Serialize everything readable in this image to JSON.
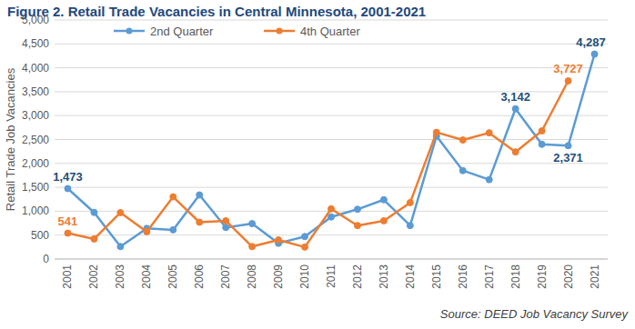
{
  "chart_data": {
    "type": "line",
    "title": "Figure 2. Retail Trade Vacancies in Central Minnesota, 2001-2021",
    "y_label": "Retail Trade Job Vacancies",
    "source": "Source: DEED Job Vacancy Survey",
    "categories": [
      "2001",
      "2002",
      "2003",
      "2004",
      "2005",
      "2006",
      "2007",
      "2008",
      "2009",
      "2010",
      "2011",
      "2012",
      "2013",
      "2014",
      "2015",
      "2016",
      "2017",
      "2018",
      "2019",
      "2020",
      "2021"
    ],
    "series": [
      {
        "name": "2nd Quarter",
        "color": "#5b9bd5",
        "marker": "circle",
        "values": [
          1473,
          975,
          260,
          640,
          610,
          1340,
          660,
          740,
          330,
          470,
          880,
          1040,
          1240,
          700,
          2570,
          1850,
          1660,
          3142,
          2400,
          2371,
          4287
        ],
        "value_labels": [
          "1,473",
          null,
          null,
          null,
          null,
          null,
          null,
          null,
          null,
          null,
          null,
          null,
          null,
          null,
          null,
          null,
          null,
          "3,142",
          null,
          "2,371",
          "4,287"
        ]
      },
      {
        "name": "4th Quarter",
        "color": "#ed7d31",
        "marker": "circle",
        "values": [
          541,
          420,
          970,
          570,
          1300,
          770,
          800,
          260,
          400,
          250,
          1050,
          700,
          800,
          1180,
          2650,
          2490,
          2640,
          2240,
          2680,
          3727,
          null
        ],
        "value_labels": [
          "541",
          null,
          null,
          null,
          null,
          null,
          null,
          null,
          null,
          null,
          null,
          null,
          null,
          null,
          null,
          null,
          null,
          null,
          null,
          "3,727",
          null
        ]
      }
    ],
    "ylim": [
      0,
      5000
    ],
    "yticks": [
      0,
      500,
      {
        "value": 1000,
        "label": "1,000"
      },
      {
        "value": 1500,
        "label": "1,500"
      },
      {
        "value": 2000,
        "label": "2,000"
      },
      {
        "value": 2500,
        "label": "2,500"
      },
      {
        "value": 3000,
        "label": "3,000"
      },
      {
        "value": 3500,
        "label": "3,500"
      },
      {
        "value": 4000,
        "label": "4,000"
      },
      {
        "value": 4500,
        "label": "4,500"
      },
      {
        "value": 5000,
        "label": "5,000"
      }
    ],
    "grid": true,
    "legend": "top"
  }
}
